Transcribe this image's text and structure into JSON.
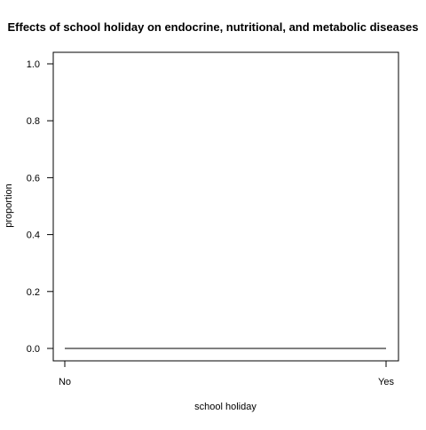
{
  "chart_data": {
    "type": "line",
    "title": "Effects of school holiday on endocrine, nutritional, and metabolic diseases",
    "xlabel": "school holiday",
    "ylabel": "proportion",
    "categories": [
      "No",
      "Yes"
    ],
    "series": [
      {
        "values": [
          0.0,
          0.0
        ]
      }
    ],
    "ylim": [
      0,
      1.0
    ],
    "yticks": [
      "0.0",
      "0.2",
      "0.4",
      "0.6",
      "0.8",
      "1.0"
    ],
    "grid": false,
    "legend": "none",
    "colors": {
      "line": "#000000",
      "axis": "#000000",
      "text": "#000000"
    }
  }
}
